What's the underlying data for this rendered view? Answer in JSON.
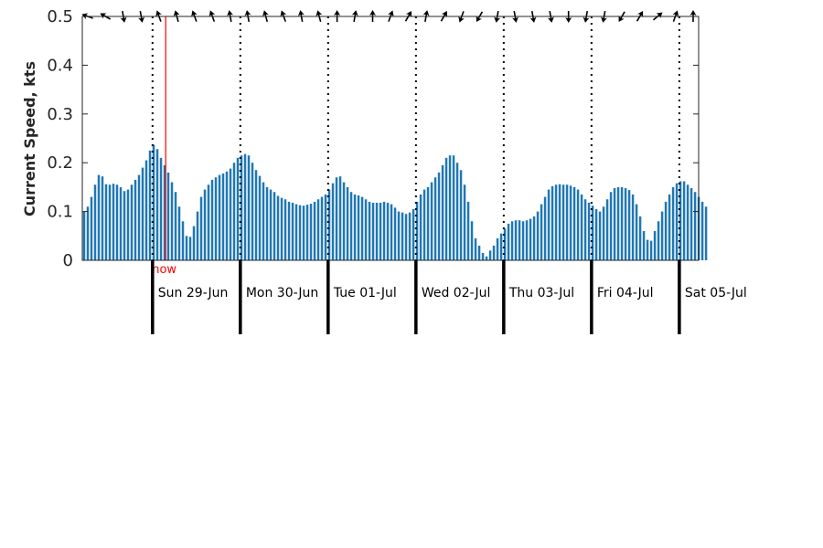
{
  "chart_data": {
    "type": "bar",
    "title": "",
    "xlabel": "",
    "ylabel": "Current Speed, kts",
    "ylim": [
      0,
      0.5
    ],
    "yticks": [
      "0",
      "0.1",
      "0.2",
      "0.3",
      "0.4",
      "0.5"
    ],
    "bar_color": "#1f77b4",
    "now_color": "#ff0000",
    "now_label": "now",
    "now_time_days": 0.15,
    "days": [
      {
        "label": "Sun 29-Jun",
        "start": 0
      },
      {
        "label": "Mon 30-Jun",
        "start": 1
      },
      {
        "label": "Tue 01-Jul",
        "start": 2
      },
      {
        "label": "Wed 02-Jul",
        "start": 3
      },
      {
        "label": "Thu 03-Jul",
        "start": 4
      },
      {
        "label": "Fri 04-Jul",
        "start": 5
      },
      {
        "label": "Sat 05-Jul",
        "start": 6
      }
    ],
    "x_start_days": -0.8,
    "x_end_days": 6.22,
    "bar_step_days": 0.041667,
    "values": [
      0.1,
      0.11,
      0.13,
      0.155,
      0.175,
      0.172,
      0.156,
      0.155,
      0.157,
      0.155,
      0.15,
      0.142,
      0.145,
      0.155,
      0.165,
      0.175,
      0.19,
      0.205,
      0.225,
      0.237,
      0.228,
      0.21,
      0.195,
      0.18,
      0.16,
      0.14,
      0.11,
      0.08,
      0.05,
      0.048,
      0.07,
      0.1,
      0.13,
      0.145,
      0.155,
      0.165,
      0.17,
      0.175,
      0.178,
      0.182,
      0.188,
      0.2,
      0.21,
      0.215,
      0.218,
      0.215,
      0.2,
      0.185,
      0.173,
      0.16,
      0.15,
      0.145,
      0.14,
      0.132,
      0.128,
      0.125,
      0.12,
      0.118,
      0.115,
      0.113,
      0.112,
      0.114,
      0.116,
      0.12,
      0.125,
      0.13,
      0.135,
      0.145,
      0.158,
      0.17,
      0.172,
      0.16,
      0.15,
      0.14,
      0.135,
      0.133,
      0.13,
      0.125,
      0.12,
      0.118,
      0.118,
      0.118,
      0.12,
      0.118,
      0.115,
      0.108,
      0.1,
      0.098,
      0.095,
      0.098,
      0.105,
      0.12,
      0.135,
      0.145,
      0.15,
      0.16,
      0.17,
      0.18,
      0.195,
      0.21,
      0.215,
      0.215,
      0.2,
      0.185,
      0.155,
      0.12,
      0.08,
      0.045,
      0.03,
      0.015,
      0.008,
      0.02,
      0.03,
      0.045,
      0.055,
      0.065,
      0.075,
      0.08,
      0.082,
      0.082,
      0.08,
      0.082,
      0.085,
      0.09,
      0.1,
      0.115,
      0.13,
      0.145,
      0.152,
      0.155,
      0.156,
      0.155,
      0.155,
      0.153,
      0.15,
      0.145,
      0.135,
      0.125,
      0.118,
      0.112,
      0.105,
      0.1,
      0.11,
      0.125,
      0.14,
      0.148,
      0.15,
      0.15,
      0.148,
      0.144,
      0.135,
      0.115,
      0.09,
      0.06,
      0.042,
      0.04,
      0.06,
      0.08,
      0.1,
      0.12,
      0.135,
      0.15,
      0.158,
      0.162,
      0.162,
      0.155,
      0.148,
      0.14,
      0.13,
      0.12,
      0.11
    ],
    "arrow_directions_deg": [
      200,
      210,
      80,
      80,
      250,
      255,
      250,
      250,
      260,
      260,
      255,
      250,
      260,
      255,
      270,
      280,
      270,
      290,
      300,
      280,
      300,
      110,
      120,
      100,
      80,
      80,
      80,
      90,
      100,
      100,
      120,
      300,
      320,
      290,
      270
    ]
  }
}
